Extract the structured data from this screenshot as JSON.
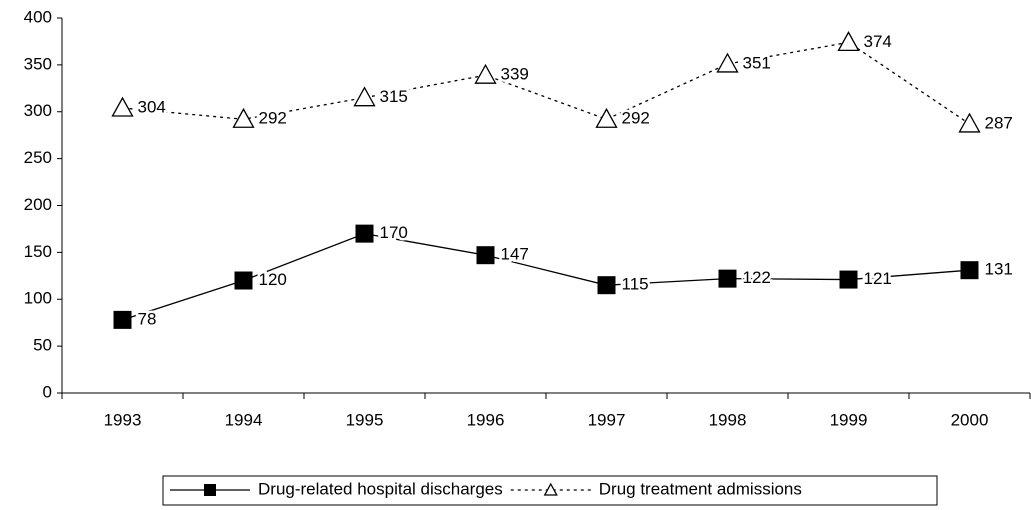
{
  "chart_data": {
    "type": "line",
    "categories": [
      "1993",
      "1994",
      "1995",
      "1996",
      "1997",
      "1998",
      "1999",
      "2000"
    ],
    "series": [
      {
        "name": "Drug-related hospital discharges",
        "color": "#000000",
        "marker": "square",
        "dash": "solid",
        "values": [
          78,
          120,
          170,
          147,
          115,
          122,
          121,
          131
        ]
      },
      {
        "name": "Drug treatment admissions",
        "color": "#000000",
        "marker": "triangle",
        "dash": "dotted",
        "values": [
          304,
          292,
          315,
          339,
          292,
          351,
          374,
          287
        ]
      }
    ],
    "ylim": [
      0,
      400
    ],
    "yticks": [
      0,
      50,
      100,
      150,
      200,
      250,
      300,
      350,
      400
    ],
    "grid": false,
    "legend": "bottom"
  }
}
